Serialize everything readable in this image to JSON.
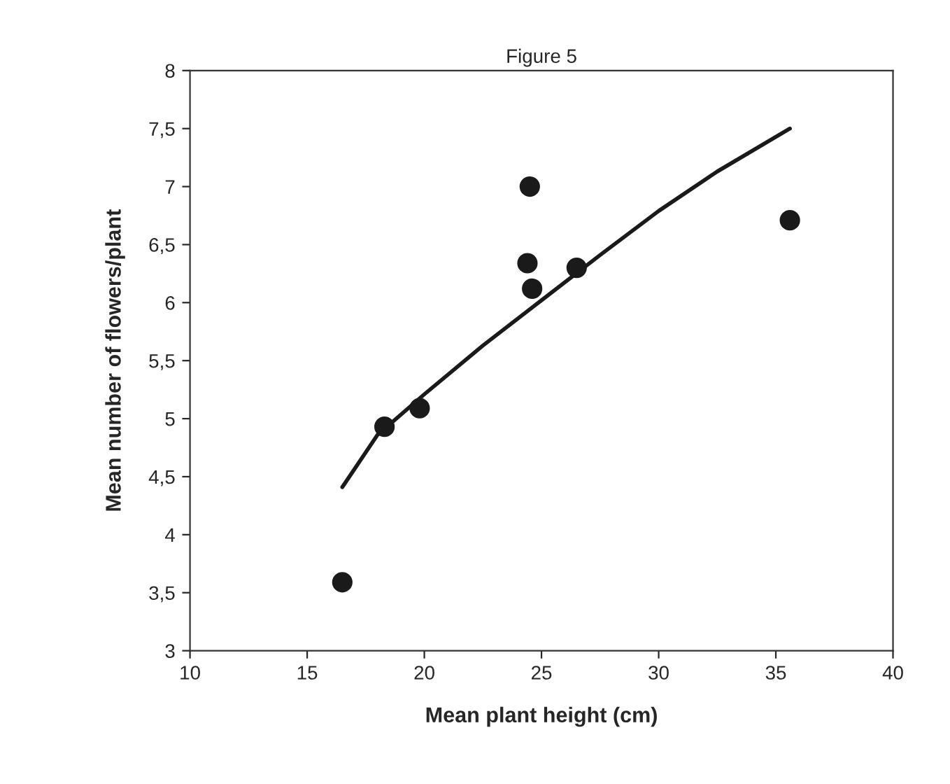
{
  "chart_data": {
    "type": "scatter",
    "title": "Figure 5",
    "xlabel": "Mean plant height (cm)",
    "ylabel": "Mean number of flowers/plant",
    "xlim": [
      10,
      40
    ],
    "xticks": [
      10,
      15,
      20,
      25,
      30,
      35,
      40
    ],
    "ylim": [
      3,
      8
    ],
    "yticks": [
      3,
      {
        "value": 3.5,
        "label": "3,5"
      },
      4,
      {
        "value": 4.5,
        "label": "4,5"
      },
      5,
      {
        "value": 5.5,
        "label": "5,5"
      },
      6,
      {
        "value": 6.5,
        "label": "6,5"
      },
      7,
      {
        "value": 7.5,
        "label": "7,5"
      },
      8
    ],
    "grid": false,
    "legend": false,
    "series": [
      {
        "color": "#1a1a1a",
        "marker": "circle",
        "x": [
          16.5,
          18.3,
          19.8,
          24.5,
          24.4,
          24.6,
          26.5,
          35.6
        ],
        "values": [
          3.59,
          4.93,
          5.09,
          7.0,
          6.34,
          6.12,
          6.3,
          6.71
        ]
      },
      {
        "type": "line",
        "color": "#1a1a1a",
        "marker": "none",
        "line_style": "solid",
        "x": [
          16.5,
          18,
          20,
          22.5,
          25,
          27.5,
          30,
          32.5,
          35.6
        ],
        "values": [
          4.41,
          4.86,
          5.21,
          5.63,
          6.02,
          6.41,
          6.79,
          7.13,
          7.5
        ]
      }
    ]
  }
}
